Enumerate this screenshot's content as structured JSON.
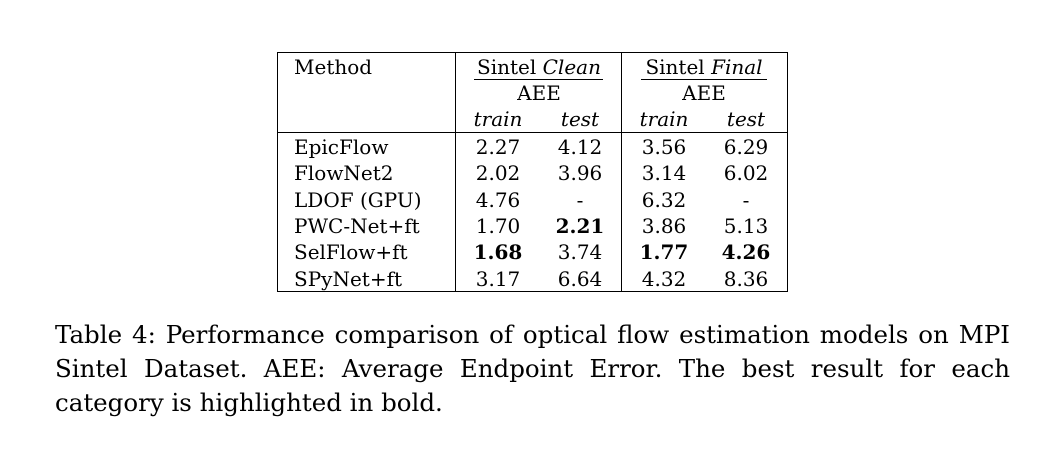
{
  "table": {
    "method_header": "Method",
    "groups": [
      {
        "prefix": "Sintel",
        "name": "Clean",
        "metric": "AEE",
        "sub": [
          "train",
          "test"
        ]
      },
      {
        "prefix": "Sintel",
        "name": "Final",
        "metric": "AEE",
        "sub": [
          "train",
          "test"
        ]
      }
    ],
    "rows": [
      {
        "method": "EpicFlow",
        "values": [
          "2.27",
          "4.12",
          "3.56",
          "6.29"
        ],
        "bold": [
          false,
          false,
          false,
          false
        ]
      },
      {
        "method": "FlowNet2",
        "values": [
          "2.02",
          "3.96",
          "3.14",
          "6.02"
        ],
        "bold": [
          false,
          false,
          false,
          false
        ]
      },
      {
        "method": "LDOF (GPU)",
        "values": [
          "4.76",
          "-",
          "6.32",
          "-"
        ],
        "bold": [
          false,
          false,
          false,
          false
        ]
      },
      {
        "method": "PWC-Net+ft",
        "values": [
          "1.70",
          "2.21",
          "3.86",
          "5.13"
        ],
        "bold": [
          false,
          true,
          false,
          false
        ]
      },
      {
        "method": "SelFlow+ft",
        "values": [
          "1.68",
          "3.74",
          "1.77",
          "4.26"
        ],
        "bold": [
          true,
          false,
          true,
          true
        ]
      },
      {
        "method": "SPyNet+ft",
        "values": [
          "3.17",
          "6.64",
          "4.32",
          "8.36"
        ],
        "bold": [
          false,
          false,
          false,
          false
        ]
      }
    ]
  },
  "caption": "Table 4:  Performance comparison of optical flow estimation models on MPI Sintel Dataset.  AEE: Average Endpoint Error.  The best result for each category is highlighted in bold."
}
